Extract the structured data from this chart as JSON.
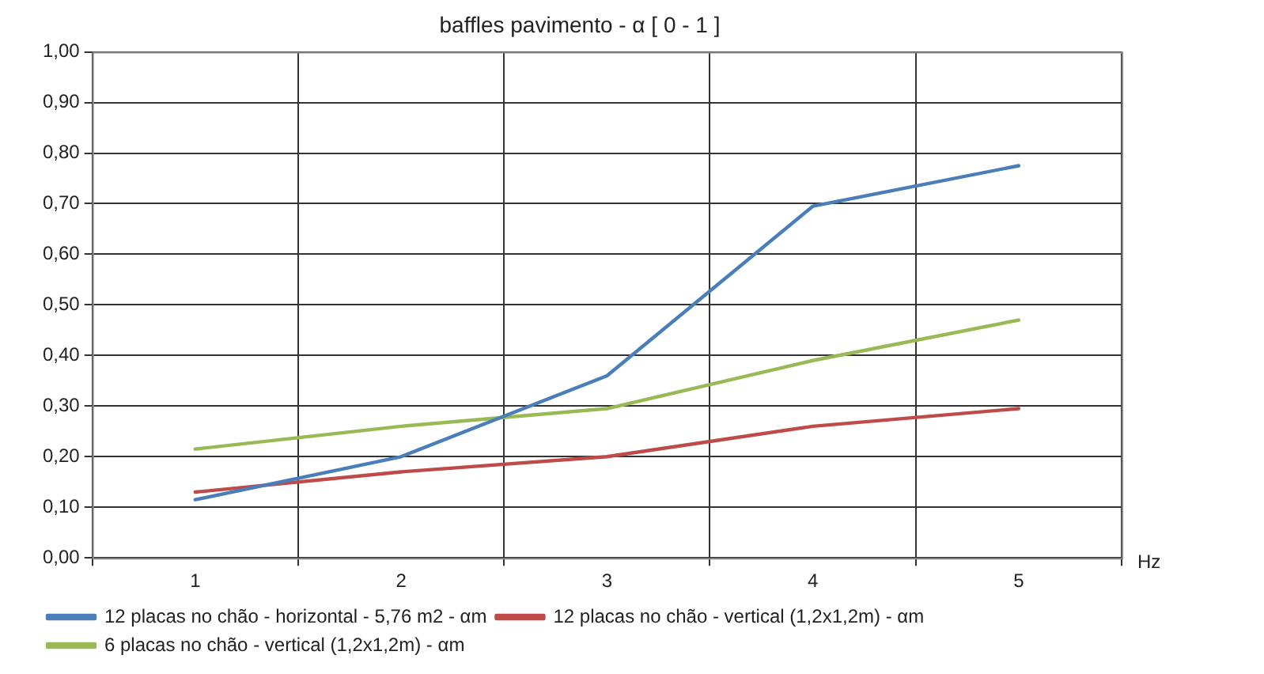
{
  "chart_data": {
    "type": "line",
    "title": "baffles pavimento - α [ 0 - 1 ]",
    "xlabel": "Hz",
    "categories": [
      "1",
      "2",
      "3",
      "4",
      "5"
    ],
    "series": [
      {
        "name": "12 placas no chão - horizontal - 5,76 m2 - αm",
        "color": "#4a7ebb",
        "values": [
          0.115,
          0.2,
          0.36,
          0.695,
          0.775
        ]
      },
      {
        "name": "12 placas no chão - vertical (1,2x1,2m) - αm",
        "color": "#be4b48",
        "values": [
          0.13,
          0.17,
          0.2,
          0.26,
          0.295
        ]
      },
      {
        "name": "6 placas no chão - vertical (1,2x1,2m) - αm",
        "color": "#98b954",
        "values": [
          0.215,
          0.26,
          0.295,
          0.39,
          0.47
        ]
      }
    ],
    "ylim": [
      0,
      1
    ],
    "yticks": [
      {
        "value": 0,
        "label": "0,00"
      },
      {
        "value": 0.1,
        "label": "0,10"
      },
      {
        "value": 0.2,
        "label": "0,20"
      },
      {
        "value": 0.3,
        "label": "0,30"
      },
      {
        "value": 0.4,
        "label": "0,40"
      },
      {
        "value": 0.5,
        "label": "0,50"
      },
      {
        "value": 0.6,
        "label": "0,60"
      },
      {
        "value": 0.7,
        "label": "0,70"
      },
      {
        "value": 0.8,
        "label": "0,80"
      },
      {
        "value": 0.9,
        "label": "0,90"
      },
      {
        "value": 1,
        "label": "1,00"
      }
    ],
    "grid": true,
    "legend": "bottom",
    "marker": "none",
    "line_style": "solid"
  }
}
